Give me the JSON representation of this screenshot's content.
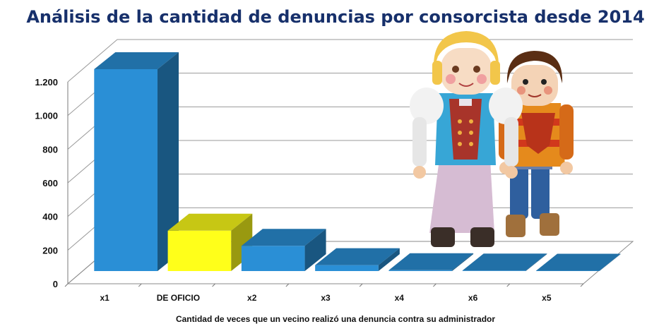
{
  "chart_data": {
    "type": "bar",
    "title": "Análisis de la cantidad de denuncias por consorcista desde 2014",
    "xlabel": "Cantidad de veces que un vecino realizó una denuncia contra su administrador",
    "ylabel": "",
    "categories": [
      "x1",
      "DE OFICIO",
      "x2",
      "x3",
      "x4",
      "x6",
      "x5"
    ],
    "values": [
      1200,
      240,
      150,
      35,
      5,
      3,
      2
    ],
    "ylim": [
      0,
      1200
    ],
    "yticks": [
      0,
      200,
      400,
      600,
      800,
      1000,
      1200
    ],
    "ytick_labels": [
      "0",
      "200",
      "400",
      "600",
      "800",
      "1.000",
      "1.200"
    ],
    "grid": true,
    "legend": "none",
    "bar_colors": [
      "#2a8fd6",
      "#ffff1a",
      "#2a8fd6",
      "#2a8fd6",
      "#2a8fd6",
      "#2a8fd6",
      "#2a8fd6"
    ]
  },
  "decorations": {
    "image_icons": [
      "playmobil-woman-figure-icon",
      "playmobil-boy-figure-icon"
    ]
  }
}
